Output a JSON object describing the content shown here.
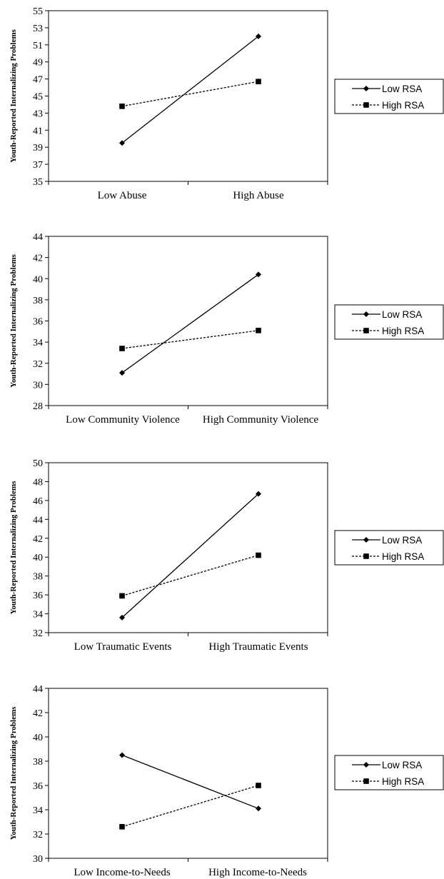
{
  "chart_data": [
    {
      "type": "line",
      "ylabel": "Youth-Reported Internalizing Problems",
      "categories": [
        "Low Abuse",
        "High Abuse"
      ],
      "ylim": [
        35,
        55
      ],
      "yticks": [
        35,
        37,
        39,
        41,
        43,
        45,
        47,
        49,
        51,
        53,
        55
      ],
      "legend_position": "right",
      "series": [
        {
          "name": "Low RSA",
          "values": [
            39.5,
            52.0
          ],
          "marker": "diamond",
          "line": "solid"
        },
        {
          "name": "High RSA",
          "values": [
            43.8,
            46.7
          ],
          "marker": "square",
          "line": "dashed"
        }
      ]
    },
    {
      "type": "line",
      "ylabel": "Youth-Reported Internalizing Problems",
      "categories": [
        "Low Community Violence",
        "High Community Violence"
      ],
      "ylim": [
        28,
        44
      ],
      "yticks": [
        28,
        30,
        32,
        34,
        36,
        38,
        40,
        42,
        44
      ],
      "legend_position": "right",
      "series": [
        {
          "name": "Low RSA",
          "values": [
            31.1,
            40.4
          ],
          "marker": "diamond",
          "line": "solid"
        },
        {
          "name": "High RSA",
          "values": [
            33.4,
            35.1
          ],
          "marker": "square",
          "line": "dashed"
        }
      ]
    },
    {
      "type": "line",
      "ylabel": "Youth-Reported Internalizing Problems",
      "categories": [
        "Low Traumatic Events",
        "High Traumatic Events"
      ],
      "ylim": [
        32,
        50
      ],
      "yticks": [
        32,
        34,
        36,
        38,
        40,
        42,
        44,
        46,
        48,
        50
      ],
      "legend_position": "right",
      "series": [
        {
          "name": "Low RSA",
          "values": [
            33.6,
            46.7
          ],
          "marker": "diamond",
          "line": "solid"
        },
        {
          "name": "High RSA",
          "values": [
            35.9,
            40.2
          ],
          "marker": "square",
          "line": "dashed"
        }
      ]
    },
    {
      "type": "line",
      "ylabel": "Youth-Reported Internalizing Problems",
      "categories": [
        "Low Income-to-Needs",
        "High Income-to-Needs"
      ],
      "ylim": [
        30,
        44
      ],
      "yticks": [
        30,
        32,
        34,
        36,
        38,
        40,
        42,
        44
      ],
      "legend_position": "right",
      "series": [
        {
          "name": "Low RSA",
          "values": [
            38.5,
            34.1
          ],
          "marker": "diamond",
          "line": "solid"
        },
        {
          "name": "High RSA",
          "values": [
            32.6,
            36.0
          ],
          "marker": "square",
          "line": "dashed"
        }
      ]
    }
  ]
}
